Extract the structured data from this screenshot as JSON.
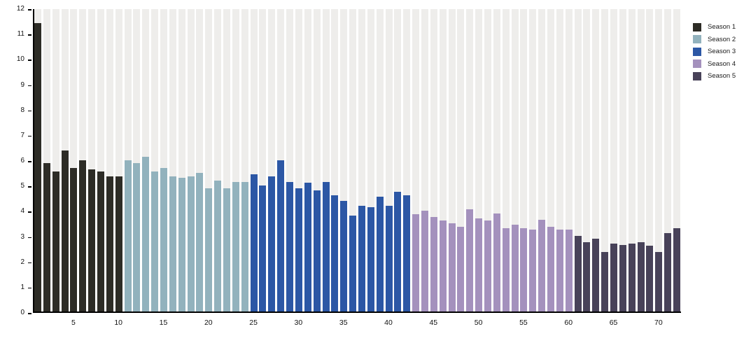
{
  "chart_data": {
    "type": "bar",
    "title": "",
    "xlabel": "",
    "ylabel": "",
    "ylim": [
      0,
      12
    ],
    "yticks": [
      0,
      1,
      2,
      3,
      4,
      5,
      6,
      7,
      8,
      9,
      10,
      11,
      12
    ],
    "xticks": [
      5,
      10,
      15,
      20,
      25,
      30,
      35,
      40,
      45,
      50,
      55,
      60,
      65,
      70
    ],
    "x_unit": "episode",
    "grid": false,
    "background_stripe_color": "#eeedeb",
    "axis_color": "#000000",
    "legend_position": "top-right",
    "series": [
      {
        "name": "Season 1",
        "color": "#2d2c26",
        "start_episode": 1,
        "values": [
          11.45,
          5.9,
          5.55,
          6.4,
          5.7,
          6.0,
          5.65,
          5.55,
          5.35,
          5.35
        ]
      },
      {
        "name": "Season 2",
        "color": "#92b2bd",
        "start_episode": 11,
        "values": [
          6.0,
          5.9,
          6.15,
          5.55,
          5.7,
          5.35,
          5.3,
          5.35,
          5.5,
          4.9,
          5.2,
          4.9,
          5.15,
          5.15
        ]
      },
      {
        "name": "Season 3",
        "color": "#2c57a5",
        "start_episode": 25,
        "values": [
          5.45,
          5.0,
          5.35,
          6.0,
          5.15,
          4.9,
          5.1,
          4.8,
          5.15,
          4.6,
          4.4,
          3.8,
          4.2,
          4.15,
          4.55,
          4.2,
          4.75,
          4.6
        ]
      },
      {
        "name": "Season 4",
        "color": "#a491bd",
        "start_episode": 43,
        "values": [
          3.85,
          4.0,
          3.75,
          3.6,
          3.5,
          3.35,
          4.05,
          3.7,
          3.6,
          3.9,
          3.3,
          3.45,
          3.3,
          3.25,
          3.65,
          3.35,
          3.25,
          3.25
        ]
      },
      {
        "name": "Season 5",
        "color": "#484259",
        "start_episode": 61,
        "values": [
          3.0,
          2.75,
          2.9,
          2.35,
          2.7,
          2.65,
          2.7,
          2.75,
          2.6,
          2.35,
          3.1,
          3.3
        ]
      }
    ]
  }
}
